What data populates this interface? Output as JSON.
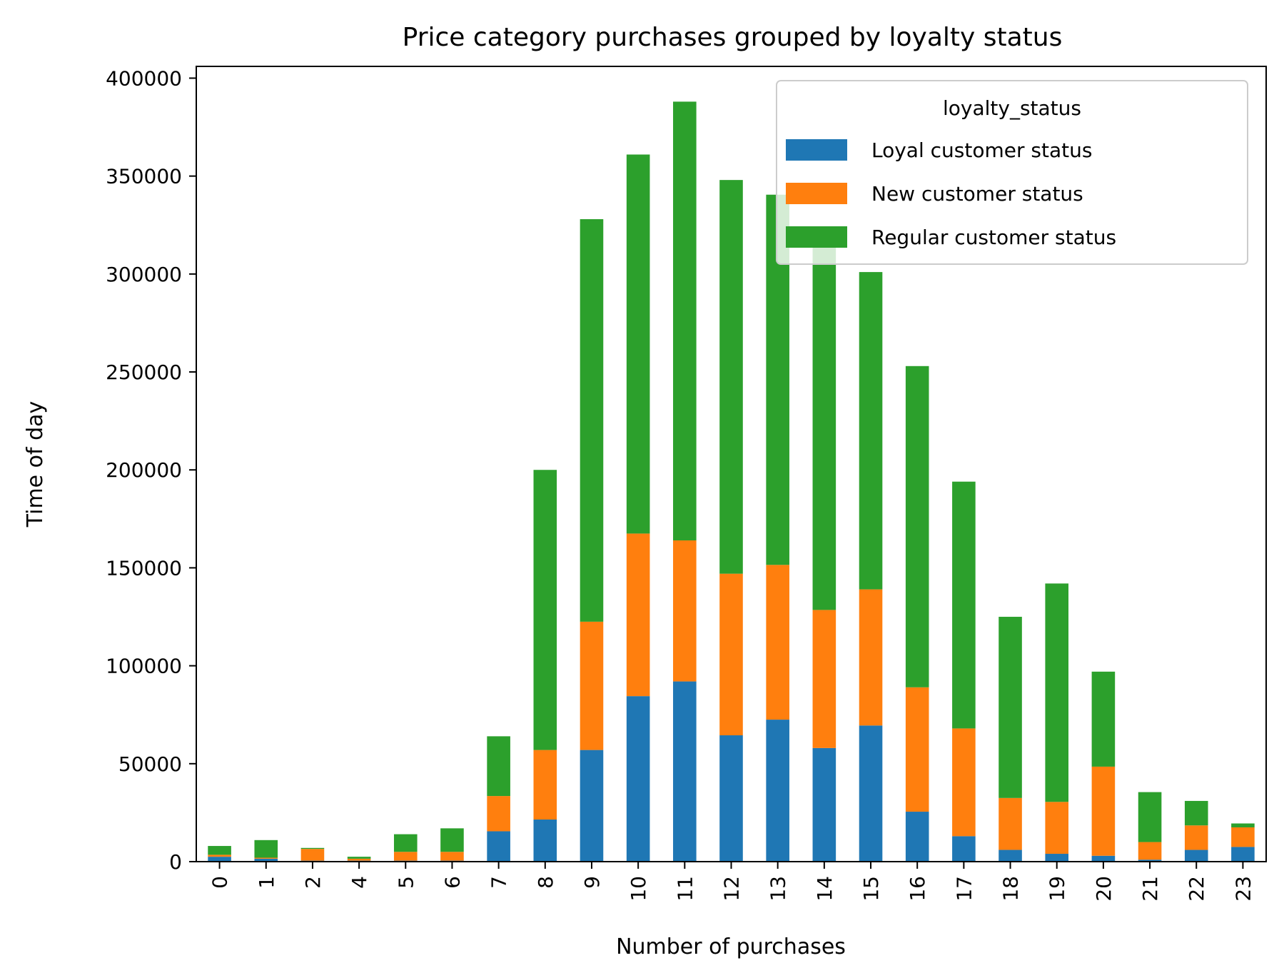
{
  "chart_data": {
    "type": "bar",
    "stacked": true,
    "title": "Price category purchases grouped by loyalty status",
    "xlabel": "Number of purchases",
    "ylabel": "Time of day",
    "categories": [
      "0",
      "1",
      "2",
      "4",
      "5",
      "6",
      "7",
      "8",
      "9",
      "10",
      "11",
      "12",
      "13",
      "14",
      "15",
      "16",
      "17",
      "18",
      "19",
      "20",
      "21",
      "22",
      "23"
    ],
    "ylim": [
      0,
      406000
    ],
    "yticks": [
      0,
      50000,
      100000,
      150000,
      200000,
      250000,
      300000,
      350000,
      400000
    ],
    "ytick_labels": [
      "0",
      "50000",
      "100000",
      "150000",
      "200000",
      "250000",
      "300000",
      "350000",
      "400000"
    ],
    "grid": false,
    "legend": {
      "title": "loyalty_status",
      "position": "top-right"
    },
    "series": [
      {
        "name": "Loyal customer status",
        "color": "#1f77b4",
        "values": [
          2500,
          1500,
          500,
          500,
          500,
          500,
          15500,
          21500,
          57000,
          84500,
          92000,
          64500,
          72500,
          58000,
          69500,
          25500,
          13000,
          6000,
          4000,
          3000,
          1000,
          6000,
          7500
        ]
      },
      {
        "name": "New customer status",
        "color": "#ff7f0e",
        "values": [
          1000,
          500,
          6000,
          1000,
          4500,
          4500,
          18000,
          35500,
          65500,
          83000,
          72000,
          82500,
          79000,
          70500,
          69500,
          63500,
          55000,
          26500,
          26500,
          45500,
          9000,
          12500,
          10000
        ]
      },
      {
        "name": "Regular customer status",
        "color": "#2ca02c",
        "values": [
          4500,
          9000,
          500,
          1000,
          9000,
          12000,
          30500,
          143000,
          205500,
          193500,
          224000,
          201000,
          189000,
          190000,
          162000,
          164000,
          126000,
          92500,
          111500,
          48500,
          25500,
          12500,
          2000
        ]
      }
    ]
  }
}
